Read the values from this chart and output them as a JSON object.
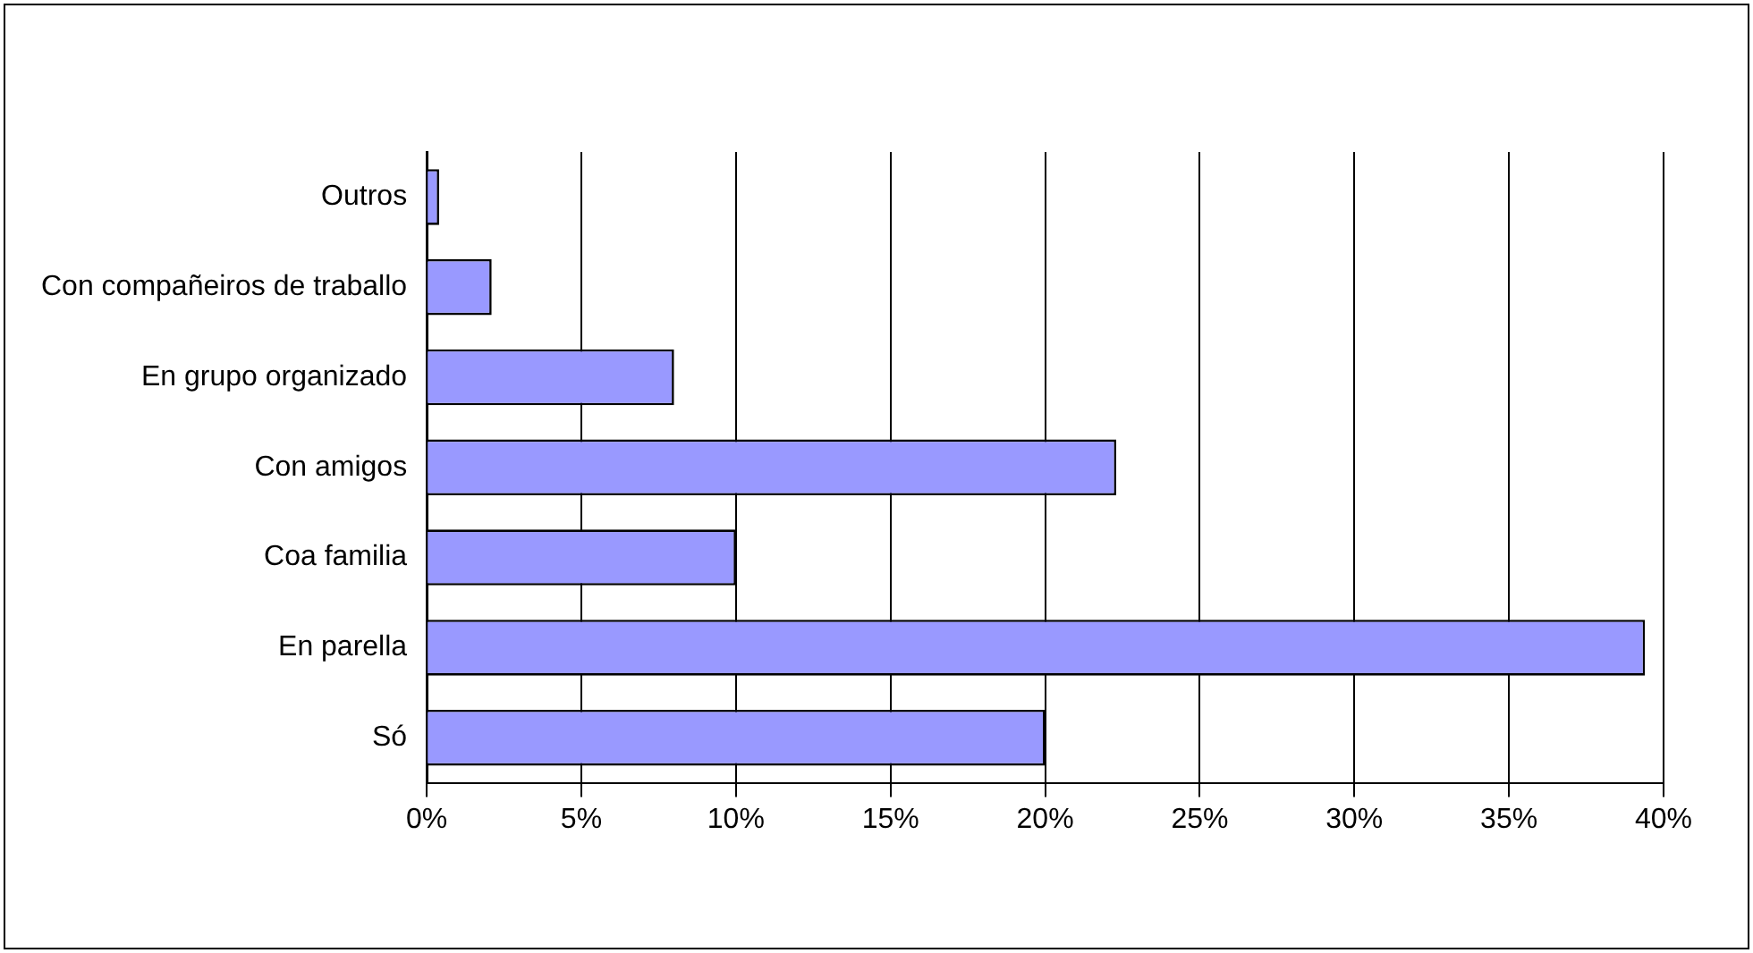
{
  "chart_data": {
    "type": "bar",
    "orientation": "horizontal",
    "categories": [
      "Outros",
      "Con compañeiros de traballo",
      "En grupo organizado",
      "Con amigos",
      "Coa familia",
      "En parella",
      "Só"
    ],
    "values": [
      0.4,
      2.1,
      8,
      22.3,
      10,
      39.4,
      20
    ],
    "color": "#9999ff",
    "xlim": [
      0,
      40
    ],
    "xticks": [
      {
        "value": 0,
        "label": "0%"
      },
      {
        "value": 5,
        "label": "5%"
      },
      {
        "value": 10,
        "label": "10%"
      },
      {
        "value": 15,
        "label": "15%"
      },
      {
        "value": 20,
        "label": "20%"
      },
      {
        "value": 25,
        "label": "25%"
      },
      {
        "value": 30,
        "label": "30%"
      },
      {
        "value": 35,
        "label": "35%"
      },
      {
        "value": 40,
        "label": "40%"
      }
    ],
    "grid": "x",
    "legend": false
  }
}
